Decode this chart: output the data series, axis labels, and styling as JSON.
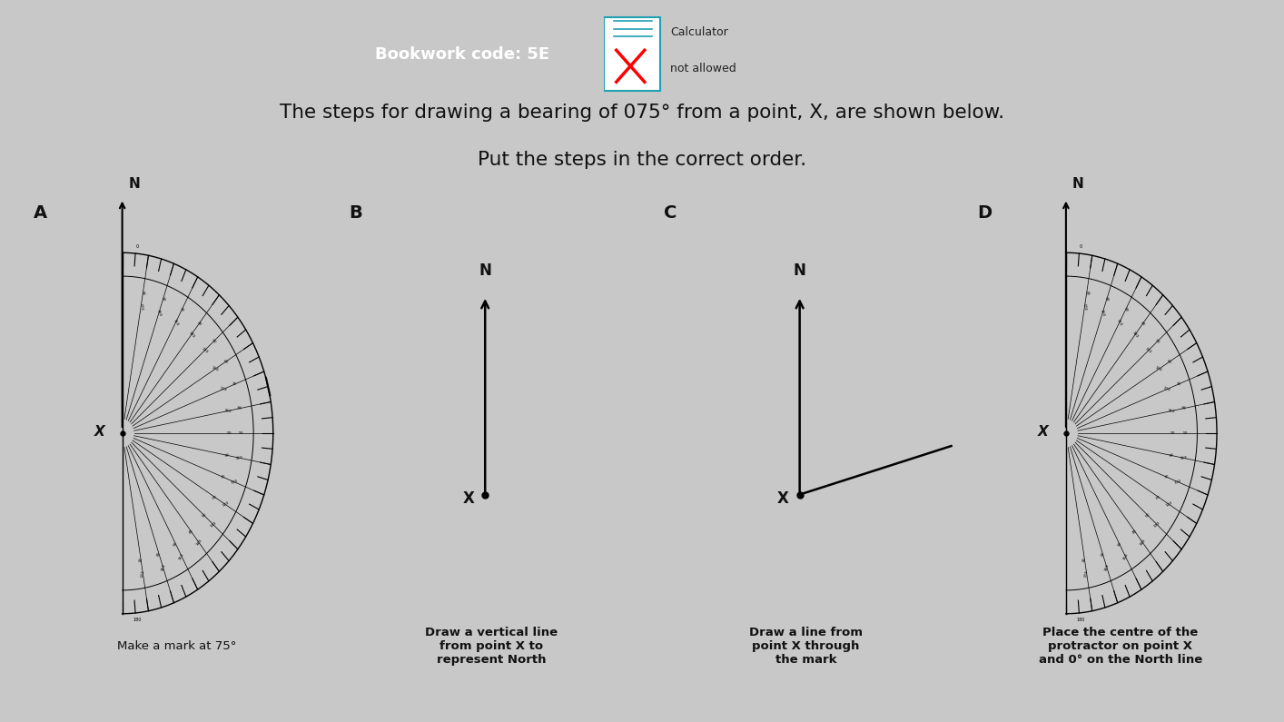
{
  "bg_color": "#c8c8c8",
  "card_color": "#e0e0e0",
  "title_text1": "The steps for drawing a bearing of 075° from a point, X, are shown below.",
  "title_text2": "Put the steps in the correct order.",
  "header_bg": "#2b4a9e",
  "header_text": "Bookwork code: 5E",
  "calc_text": "Calculator",
  "not_allowed_text": "not allowed",
  "caption_A": "Make a mark at 75°",
  "caption_B": "Draw a vertical line\nfrom point X to\nrepresent North",
  "caption_C": "Draw a line from\npoint X through\nthe mark",
  "caption_D": "Place the centre of the\nprotractor on point X\nand 0° on the North line"
}
